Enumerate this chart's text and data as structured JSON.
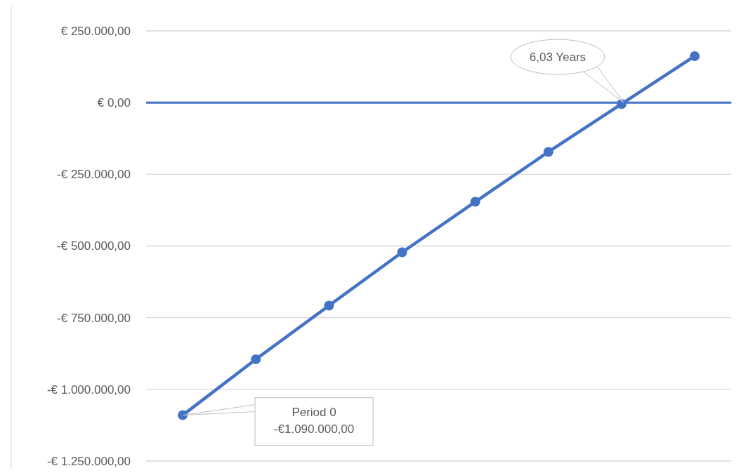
{
  "chart_data": {
    "type": "line",
    "categories": [
      null,
      null,
      null,
      null,
      null,
      null,
      null,
      null
    ],
    "series": [
      {
        "color": "#4472c4",
        "values": [
          -1090000,
          -895000,
          -708000,
          -522000,
          -346000,
          -172000,
          -5000,
          162000
        ]
      }
    ],
    "ylim": [
      -1250000,
      250000
    ],
    "yticks": [
      {
        "value": 250000,
        "label": "€ 250.000,00"
      },
      {
        "value": 0,
        "label": "€ 0,00"
      },
      {
        "value": -250000,
        "label": "-€ 250.000,00"
      },
      {
        "value": -500000,
        "label": "-€ 500.000,00"
      },
      {
        "value": -750000,
        "label": "-€ 750.000,00"
      },
      {
        "value": -1000000,
        "label": "-€ 1.000.000,00"
      },
      {
        "value": -1250000,
        "label": "-€ 1.250.000,00"
      }
    ],
    "grid": "y",
    "marker": "circle",
    "line_style": "solid",
    "ref_lines": [
      {
        "axis": "y",
        "value": 0,
        "color": "#4472c4"
      }
    ],
    "annotations": [
      "6,03 Years",
      "Period 0\n-€1.090.000,00"
    ]
  }
}
